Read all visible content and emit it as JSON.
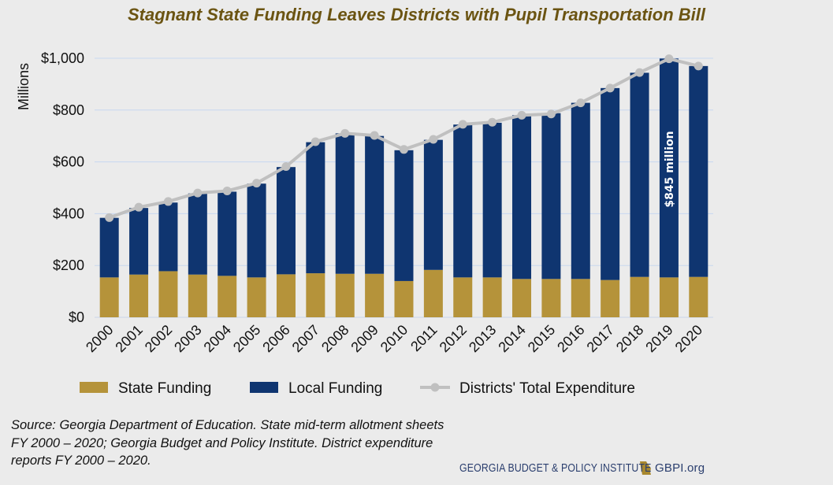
{
  "chart_data": {
    "type": "bar",
    "title": "Stagnant State Funding Leaves Districts with Pupil Transportation Bill",
    "ylabel": "Millions",
    "xlabel": "",
    "ylim": [
      0,
      1000
    ],
    "yticks": [
      0,
      200,
      400,
      600,
      800,
      1000
    ],
    "ytick_labels": [
      "$0",
      "$200",
      "$400",
      "$600",
      "$800",
      "$1,000"
    ],
    "stacked": true,
    "categories": [
      "2000",
      "2001",
      "2002",
      "2003",
      "2004",
      "2005",
      "2006",
      "2007",
      "2008",
      "2009",
      "2010",
      "2011",
      "2012",
      "2013",
      "2014",
      "2015",
      "2016",
      "2017",
      "2018",
      "2019",
      "2020"
    ],
    "series": [
      {
        "name": "State Funding",
        "type": "bar",
        "color": "#b5933a",
        "values": [
          154,
          165,
          178,
          165,
          160,
          154,
          166,
          170,
          168,
          168,
          140,
          183,
          154,
          154,
          148,
          148,
          148,
          144,
          156,
          154,
          156
        ]
      },
      {
        "name": "Local Funding",
        "type": "bar",
        "color": "#0f3570",
        "values": [
          230,
          257,
          265,
          313,
          325,
          362,
          414,
          506,
          542,
          532,
          505,
          502,
          590,
          597,
          632,
          640,
          680,
          741,
          788,
          845,
          814
        ]
      },
      {
        "name": "Districts' Total Expenditure",
        "type": "line",
        "color": "#c0c0c0",
        "values": [
          385,
          425,
          447,
          480,
          488,
          518,
          582,
          678,
          710,
          702,
          648,
          687,
          745,
          753,
          780,
          785,
          828,
          885,
          945,
          998,
          970
        ]
      }
    ],
    "annotations": [
      {
        "category": "2019",
        "text": "$845 million"
      }
    ],
    "grid": true,
    "legend_position": "bottom"
  },
  "source_note": "Source: Georgia Department of Education. State mid-term allotment sheets FY 2000 – 2020; Georgia Budget and Policy Institute. District expenditure reports FY 2000 – 2020.",
  "footer": {
    "org_name": "GEORGIA BUDGET & POLICY INSTITUTE",
    "url": "GBPI.org",
    "icon": "georgia-state-icon"
  }
}
